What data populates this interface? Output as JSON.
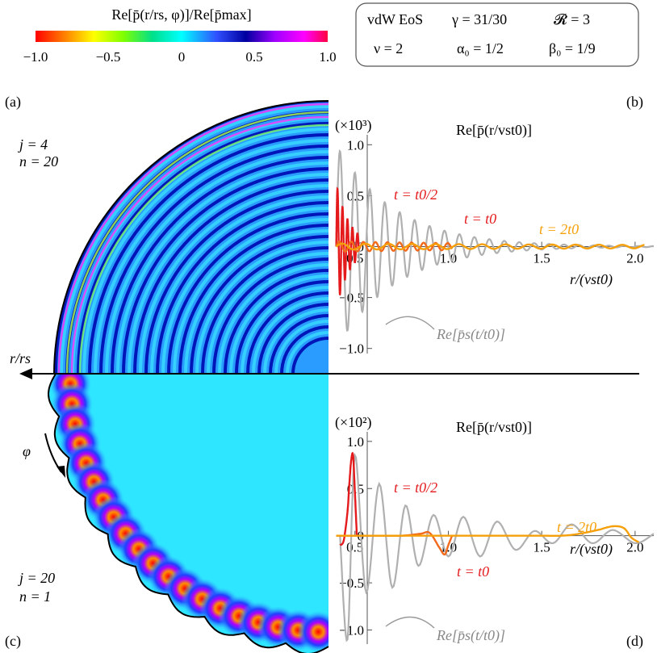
{
  "colorbar": {
    "title": "Re[p̄(r/rs, φ)]/Re[p̄max]",
    "ticks": [
      "−1.0",
      "−0.5",
      "0",
      "0.5",
      "1.0"
    ],
    "colormap": [
      "#ff0000",
      "#ff8000",
      "#ffff00",
      "#80ff00",
      "#00e08a",
      "#00ffff",
      "#3050ff",
      "#0000a0",
      "#a000ff",
      "#ff00ff",
      "#ff0040"
    ]
  },
  "params": {
    "eos": "vdW EoS",
    "gamma": "γ = 31/30",
    "R": "𝓡 = 3",
    "nu": "ν = 2",
    "alpha0": "α₀ = 1/2",
    "beta0": "β₀ = 1/9"
  },
  "panels": {
    "a": "(a)",
    "b": "(b)",
    "c": "(c)",
    "d": "(d)",
    "a_j": "j = 4",
    "a_n": "n = 20",
    "c_j": "j = 20",
    "c_n": "n = 1",
    "r_axis": "r/rs",
    "phi": "φ"
  },
  "chart_data": [
    {
      "type": "line",
      "panel": "b",
      "title": "Re[p̄(r/vst0)]",
      "scale_label": "(×10³)",
      "xlabel": "r/(vst0)",
      "xlim": [
        0.38,
        2.1
      ],
      "ylim": [
        -1.05,
        1.05
      ],
      "xticks": [
        0.5,
        1.0,
        1.5,
        2.0
      ],
      "xtick_labels": [
        "0.5",
        "1.0",
        "1.5",
        "2.0"
      ],
      "yticks": [
        1.0,
        0.5,
        0,
        -0.5,
        -1.0
      ],
      "ytick_labels": [
        "1.0",
        "0.5",
        "0",
        "−0.5",
        "−1.0"
      ],
      "series": [
        {
          "name": "t = t0/2",
          "color": "#e41a1c",
          "x_range": [
            0.4,
            0.52
          ],
          "wave_number": 150,
          "decay_rate": 14,
          "peak": 0.62
        },
        {
          "name": "t = t0",
          "color": "#f26a1c",
          "x_range": [
            0.4,
            1.02
          ],
          "wave_number": 62,
          "decay_rate": 0.6,
          "peak": 0.05
        },
        {
          "name": "t = 2t0",
          "color": "#f5a00a",
          "x_range": [
            0.4,
            2.05
          ],
          "wave_number": 32,
          "decay_rate": 0.35,
          "peak": 0.03
        },
        {
          "name": "Re[p̄s(t/t0)]",
          "color": "#b0b0b0",
          "x_range": [
            0.4,
            2.1
          ],
          "wave_number": 50,
          "decay_rate": 3.2,
          "peak": 1.0
        }
      ],
      "annotations": [
        "t = t0/2",
        "t = t0",
        "t = 2t0",
        "Re[p̄s(t/t0)]"
      ]
    },
    {
      "type": "line",
      "panel": "d",
      "title": "Re[p̄(r/vst0)]",
      "scale_label": "(×10²)",
      "xlabel": "r/(vst0)",
      "xlim": [
        0.38,
        2.1
      ],
      "ylim": [
        -1.15,
        1.05
      ],
      "xticks": [
        0.5,
        1.0,
        1.5,
        2.0
      ],
      "xtick_labels": [
        "0.5",
        "1.0",
        "1.5",
        "2.0"
      ],
      "yticks": [
        1.0,
        0.5,
        0,
        -0.5,
        -1.0
      ],
      "ytick_labels": [
        "1.0",
        "0.5",
        "0",
        "−0.5",
        "−1.0"
      ],
      "series": [
        {
          "name": "t = t0/2",
          "color": "#e41a1c",
          "x": [
            0.42,
            0.44,
            0.46,
            0.47,
            0.48,
            0.49,
            0.5,
            0.51
          ],
          "y": [
            -0.1,
            -0.05,
            0.25,
            0.55,
            0.8,
            0.85,
            0.45,
            0.0
          ]
        },
        {
          "name": "t = t0",
          "color": "#f26a1c",
          "x": [
            0.4,
            0.6,
            0.75,
            0.85,
            0.9,
            0.95,
            0.98,
            1.0,
            1.02
          ],
          "y": [
            0.0,
            0.0,
            0.0,
            0.02,
            0.03,
            -0.12,
            -0.2,
            -0.1,
            0.0
          ]
        },
        {
          "name": "t = 2t0",
          "color": "#f5a00a",
          "x": [
            0.4,
            1.4,
            1.6,
            1.7,
            1.8,
            1.88,
            1.94,
            1.98,
            2.02
          ],
          "y": [
            0.0,
            0.0,
            0.0,
            0.02,
            0.06,
            0.1,
            0.08,
            -0.02,
            -0.07
          ]
        },
        {
          "name": "Re[p̄s(t/t0)]",
          "color": "#b0b0b0",
          "x": [
            0.42,
            0.46,
            0.5,
            0.56,
            0.63,
            0.7,
            0.77,
            0.84,
            0.92,
            1.0,
            1.08,
            1.17,
            1.26,
            1.36,
            1.46,
            1.56,
            1.66,
            1.77,
            1.88,
            2.0,
            2.1
          ],
          "y": [
            0.0,
            -1.1,
            0.85,
            -0.6,
            0.55,
            -0.55,
            0.32,
            -0.32,
            0.22,
            -0.22,
            0.2,
            -0.22,
            0.15,
            -0.15,
            0.05,
            -0.08,
            0.12,
            -0.08,
            0.06,
            -0.08,
            0.02
          ]
        }
      ],
      "annotations": [
        "t = t0/2",
        "t = t0",
        "t = 2t0",
        "Re[p̄s(t/t0)]"
      ]
    }
  ]
}
